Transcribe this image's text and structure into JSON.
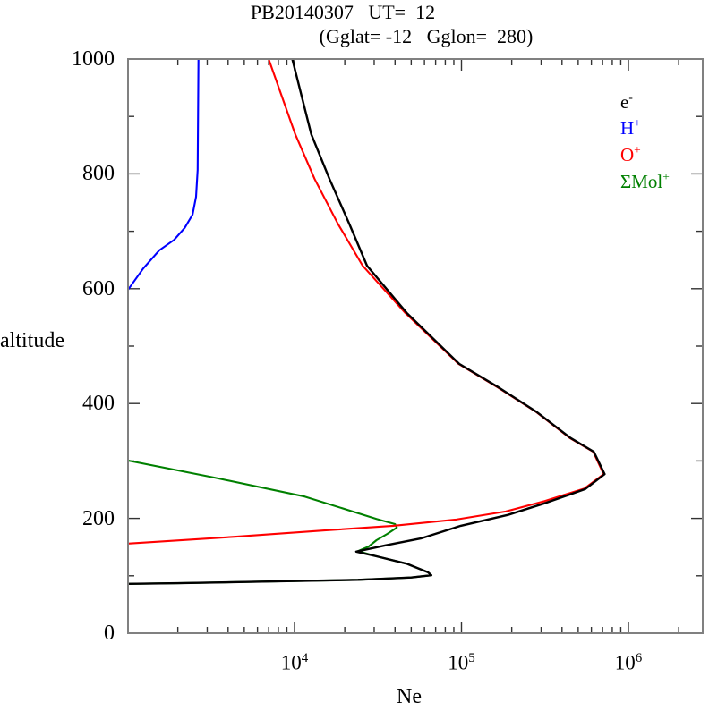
{
  "figure": {
    "title_line1": "PB20140307   UT=  12",
    "title_line2": "(Gglat= -12   Gglon=  280)"
  },
  "axes": {
    "y_label": "altitude",
    "x_label": "Ne",
    "x_scale": "log",
    "y_major_ticks": [
      {
        "value": 0,
        "label": "0"
      },
      {
        "value": 200,
        "label": "200"
      },
      {
        "value": 400,
        "label": "400"
      },
      {
        "value": 600,
        "label": "600"
      },
      {
        "value": 800,
        "label": "800"
      },
      {
        "value": 1000,
        "label": "1000"
      }
    ],
    "y_minor_ticks": [
      100,
      300,
      500,
      700,
      900
    ],
    "x_major_ticks": [
      {
        "value": 10000,
        "base": "10",
        "exp": "4"
      },
      {
        "value": 100000,
        "base": "10",
        "exp": "5"
      },
      {
        "value": 1000000,
        "base": "10",
        "exp": "6"
      }
    ],
    "x_minor_ticks": [
      2000,
      3000,
      4000,
      5000,
      6000,
      7000,
      8000,
      9000,
      20000,
      30000,
      40000,
      50000,
      60000,
      70000,
      80000,
      90000,
      200000,
      300000,
      400000,
      500000,
      600000,
      700000,
      800000,
      900000,
      2000000
    ],
    "frame_color": "#808080",
    "tick_color": "#333333"
  },
  "legend": {
    "items": [
      {
        "main": "e",
        "sup": "-",
        "color": "#000000"
      },
      {
        "main": "H",
        "sup": "+",
        "color": "#0000ff"
      },
      {
        "main": "O",
        "sup": "+",
        "color": "#ff0000"
      },
      {
        "main": "ΣMol",
        "sup": "+",
        "color": "#008000"
      }
    ]
  },
  "chart_data": {
    "type": "line",
    "title": "PB20140307 UT= 12 (Gglat= -12 Gglon= 280)",
    "xlabel": "Ne",
    "ylabel": "altitude",
    "x_scale": "log",
    "xlim": [
      1000,
      2800000
    ],
    "ylim": [
      0,
      1000
    ],
    "grid": false,
    "legend_position": "upper right",
    "series": [
      {
        "name": "SigmaMol+",
        "color": "#008000",
        "points": [
          [
            1000,
            301
          ],
          [
            3300,
            271
          ],
          [
            11500,
            238
          ],
          [
            31000,
            199
          ],
          [
            40000,
            190
          ],
          [
            41000,
            184
          ],
          [
            36000,
            173
          ],
          [
            31000,
            162
          ],
          [
            27800,
            151
          ],
          [
            24000,
            143
          ],
          [
            31000,
            134
          ],
          [
            47000,
            121
          ],
          [
            63000,
            106
          ],
          [
            66000,
            101
          ],
          [
            50000,
            97
          ],
          [
            24000,
            93
          ],
          [
            7000,
            90
          ],
          [
            2000,
            87
          ],
          [
            1000,
            86
          ]
        ]
      },
      {
        "name": "H+",
        "color": "#0000ff",
        "points": [
          [
            1000,
            597
          ],
          [
            1240,
            635
          ],
          [
            1550,
            667
          ],
          [
            1900,
            685
          ],
          [
            2200,
            706
          ],
          [
            2450,
            729
          ],
          [
            2570,
            760
          ],
          [
            2630,
            807
          ],
          [
            2660,
            1000
          ]
        ]
      },
      {
        "name": "O+",
        "color": "#ff0000",
        "points": [
          [
            7000,
            1000
          ],
          [
            10100,
            869
          ],
          [
            13200,
            791
          ],
          [
            18200,
            713
          ],
          [
            25600,
            640
          ],
          [
            46000,
            558
          ],
          [
            96000,
            469
          ],
          [
            165000,
            428
          ],
          [
            278000,
            386
          ],
          [
            445000,
            340
          ],
          [
            615000,
            316
          ],
          [
            710000,
            277
          ],
          [
            545000,
            252
          ],
          [
            315000,
            230
          ],
          [
            184000,
            212
          ],
          [
            93000,
            198
          ],
          [
            39000,
            187
          ],
          [
            15100,
            179
          ],
          [
            4470,
            168
          ],
          [
            1000,
            156
          ]
        ]
      },
      {
        "name": "e-",
        "color": "#000000",
        "points": [
          [
            9700,
            1000
          ],
          [
            12600,
            869
          ],
          [
            16200,
            791
          ],
          [
            21300,
            713
          ],
          [
            27200,
            640
          ],
          [
            47000,
            558
          ],
          [
            97000,
            469
          ],
          [
            167000,
            428
          ],
          [
            280000,
            386
          ],
          [
            450000,
            340
          ],
          [
            620000,
            316
          ],
          [
            720000,
            277
          ],
          [
            550000,
            251
          ],
          [
            320000,
            227
          ],
          [
            190000,
            206
          ],
          [
            99000,
            187
          ],
          [
            57000,
            165
          ],
          [
            35000,
            153
          ],
          [
            23400,
            142
          ],
          [
            31000,
            134
          ],
          [
            47000,
            121
          ],
          [
            63000,
            106
          ],
          [
            66000,
            101
          ],
          [
            50000,
            97
          ],
          [
            24000,
            93
          ],
          [
            7000,
            90
          ],
          [
            2000,
            87
          ],
          [
            1000,
            86
          ]
        ]
      }
    ]
  }
}
